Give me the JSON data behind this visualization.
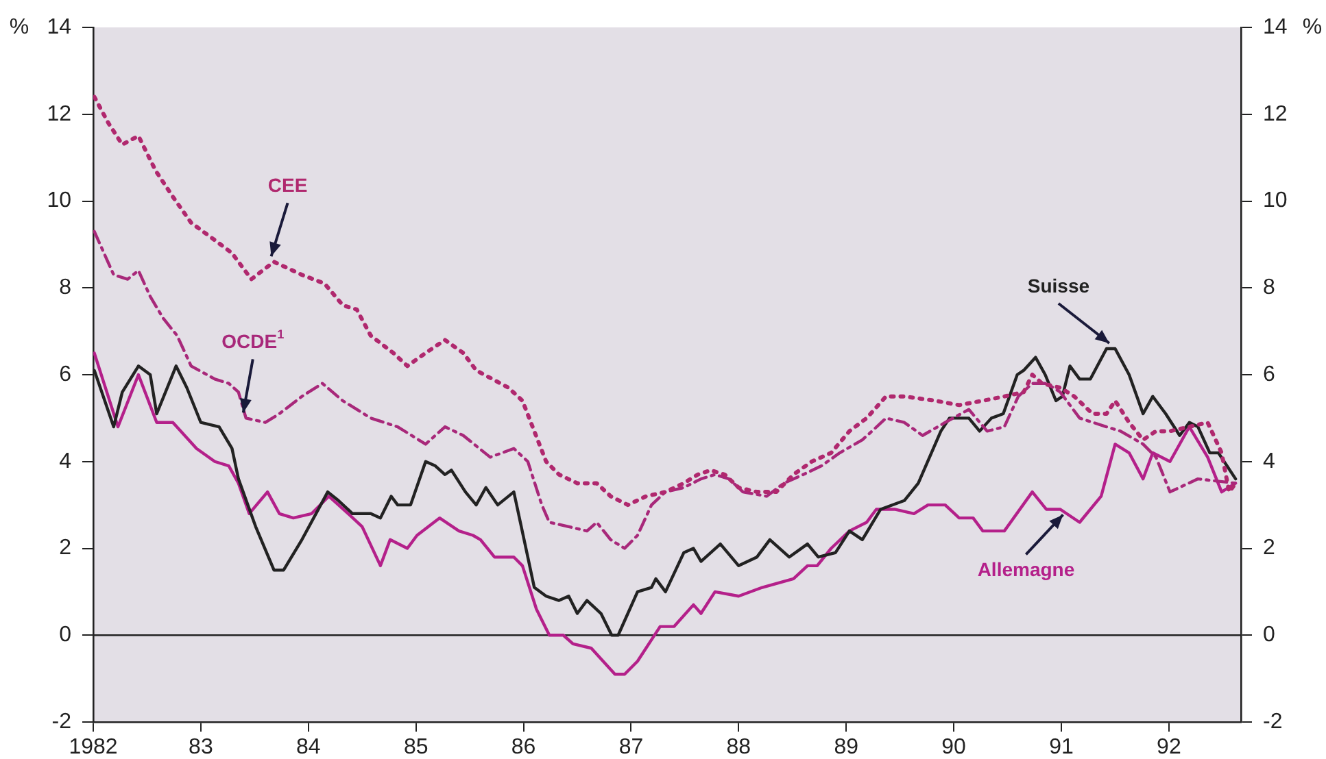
{
  "chart_data": {
    "type": "line",
    "ylabel": "%",
    "y2label": "%",
    "legend": false,
    "grid": false,
    "marker": "none",
    "xlim": [
      1982,
      1992.67
    ],
    "xticks": [
      1982,
      {
        "value": 1983,
        "label": "83"
      },
      {
        "value": 1984,
        "label": "84"
      },
      {
        "value": 1985,
        "label": "85"
      },
      {
        "value": 1986,
        "label": "86"
      },
      {
        "value": 1987,
        "label": "87"
      },
      {
        "value": 1988,
        "label": "88"
      },
      {
        "value": 1989,
        "label": "89"
      },
      {
        "value": 1990,
        "label": "90"
      },
      {
        "value": 1991,
        "label": "91"
      },
      {
        "value": 1992,
        "label": "92"
      }
    ],
    "ylim": [
      -2,
      14
    ],
    "yticks": [
      -2,
      0,
      2,
      4,
      6,
      8,
      10,
      12,
      14
    ],
    "y2lim": [
      -2,
      14
    ],
    "y2ticks": [
      -2,
      0,
      2,
      4,
      6,
      8,
      10,
      12,
      14
    ],
    "ref_lines": [
      {
        "axis": "y",
        "value": 0,
        "color": "#222222",
        "line_style": "solid"
      }
    ],
    "series": [
      {
        "name": "CEE",
        "color": "#b0286e",
        "line_style": "dotted",
        "x": [
          1982.01,
          1982.14,
          1982.27,
          1982.42,
          1982.58,
          1982.74,
          1982.91,
          1983.13,
          1983.29,
          1983.47,
          1983.68,
          1983.94,
          1984.15,
          1984.32,
          1984.45,
          1984.58,
          1984.79,
          1984.92,
          1985.09,
          1985.27,
          1985.44,
          1985.56,
          1985.86,
          1985.99,
          1986.1,
          1986.21,
          1986.33,
          1986.5,
          1986.68,
          1986.81,
          1986.97,
          1987.14,
          1987.32,
          1987.49,
          1987.62,
          1987.74,
          1987.87,
          1988.0,
          1988.17,
          1988.35,
          1988.51,
          1988.68,
          1988.86,
          1989.03,
          1989.19,
          1989.37,
          1989.54,
          1989.83,
          1990.05,
          1990.27,
          1990.47,
          1990.65,
          1990.73,
          1990.82,
          1990.99,
          1991.12,
          1991.29,
          1991.42,
          1991.5,
          1991.63,
          1991.76,
          1991.88,
          1992.01,
          1992.19,
          1992.36,
          1992.49,
          1992.56,
          1992.62
        ],
        "values": [
          12.4,
          11.8,
          11.3,
          11.5,
          10.7,
          10.1,
          9.5,
          9.1,
          8.8,
          8.2,
          8.6,
          8.3,
          8.1,
          7.6,
          7.5,
          6.9,
          6.5,
          6.2,
          6.5,
          6.8,
          6.5,
          6.1,
          5.7,
          5.4,
          4.7,
          4.0,
          3.7,
          3.5,
          3.5,
          3.2,
          3.0,
          3.2,
          3.3,
          3.5,
          3.7,
          3.8,
          3.7,
          3.4,
          3.3,
          3.3,
          3.7,
          4.0,
          4.2,
          4.7,
          5.0,
          5.5,
          5.5,
          5.4,
          5.3,
          5.4,
          5.5,
          5.6,
          6.0,
          5.8,
          5.7,
          5.5,
          5.1,
          5.1,
          5.4,
          4.9,
          4.5,
          4.7,
          4.7,
          4.8,
          4.9,
          4.2,
          3.3,
          3.5
        ]
      },
      {
        "name": "OCDE$^{1}$",
        "color": "#a8287a",
        "line_style": "dashed",
        "x": [
          1982.01,
          1982.19,
          1982.32,
          1982.42,
          1982.53,
          1982.65,
          1982.78,
          1982.91,
          1983.13,
          1983.26,
          1983.35,
          1983.42,
          1983.6,
          1983.73,
          1983.94,
          1984.13,
          1984.32,
          1984.58,
          1984.83,
          1985.09,
          1985.27,
          1985.44,
          1985.69,
          1985.91,
          1986.04,
          1986.17,
          1986.24,
          1986.42,
          1986.59,
          1986.68,
          1986.81,
          1986.94,
          1987.06,
          1987.19,
          1987.32,
          1987.49,
          1987.65,
          1987.78,
          1987.91,
          1988.04,
          1988.26,
          1988.42,
          1988.6,
          1988.77,
          1988.94,
          1989.15,
          1989.24,
          1989.37,
          1989.54,
          1989.71,
          1989.92,
          1990.14,
          1990.31,
          1990.47,
          1990.6,
          1990.73,
          1990.86,
          1990.99,
          1991.17,
          1991.42,
          1991.55,
          1991.76,
          1991.88,
          1992.01,
          1992.27,
          1992.62
        ],
        "values": [
          9.3,
          8.3,
          8.2,
          8.4,
          7.8,
          7.3,
          6.9,
          6.2,
          5.9,
          5.8,
          5.6,
          5.0,
          4.9,
          5.1,
          5.5,
          5.8,
          5.4,
          5.0,
          4.8,
          4.4,
          4.8,
          4.6,
          4.1,
          4.3,
          4.0,
          3.0,
          2.6,
          2.5,
          2.4,
          2.6,
          2.2,
          2.0,
          2.3,
          3.0,
          3.3,
          3.4,
          3.6,
          3.7,
          3.6,
          3.3,
          3.2,
          3.5,
          3.7,
          3.9,
          4.2,
          4.5,
          4.7,
          5.0,
          4.9,
          4.6,
          4.9,
          5.2,
          4.7,
          4.8,
          5.5,
          5.8,
          5.8,
          5.6,
          5.0,
          4.8,
          4.7,
          4.4,
          4.1,
          3.3,
          3.6,
          3.5
        ]
      },
      {
        "name": "Suisse",
        "color": "#222222",
        "line_style": "solid",
        "x": [
          1982.01,
          1982.19,
          1982.27,
          1982.42,
          1982.53,
          1982.59,
          1982.77,
          1982.87,
          1983.0,
          1983.17,
          1983.29,
          1983.35,
          1983.51,
          1983.68,
          1983.77,
          1983.94,
          1984.18,
          1984.28,
          1984.41,
          1984.58,
          1984.67,
          1984.77,
          1984.83,
          1984.95,
          1985.09,
          1985.18,
          1985.27,
          1985.33,
          1985.46,
          1985.56,
          1985.65,
          1985.76,
          1985.91,
          1986.04,
          1986.1,
          1986.21,
          1986.33,
          1986.42,
          1986.5,
          1986.59,
          1986.72,
          1986.82,
          1986.88,
          1987.06,
          1987.19,
          1987.23,
          1987.32,
          1987.49,
          1987.58,
          1987.65,
          1987.83,
          1988.0,
          1988.17,
          1988.29,
          1988.47,
          1988.64,
          1988.74,
          1988.9,
          1989.03,
          1989.15,
          1989.32,
          1989.54,
          1989.67,
          1989.88,
          1989.96,
          1990.14,
          1990.24,
          1990.35,
          1990.46,
          1990.59,
          1990.65,
          1990.76,
          1990.85,
          1990.95,
          1991.01,
          1991.08,
          1991.17,
          1991.27,
          1991.42,
          1991.5,
          1991.63,
          1991.76,
          1991.85,
          1991.97,
          1992.1,
          1992.19,
          1992.27,
          1992.38,
          1992.46,
          1992.62
        ],
        "values": [
          6.1,
          4.8,
          5.6,
          6.2,
          6.0,
          5.1,
          6.2,
          5.7,
          4.9,
          4.8,
          4.3,
          3.6,
          2.5,
          1.5,
          1.5,
          2.2,
          3.3,
          3.1,
          2.8,
          2.8,
          2.7,
          3.2,
          3.0,
          3.0,
          4.0,
          3.9,
          3.7,
          3.8,
          3.3,
          3.0,
          3.4,
          3.0,
          3.3,
          1.8,
          1.1,
          0.9,
          0.8,
          0.9,
          0.5,
          0.8,
          0.5,
          0.0,
          0.0,
          1.0,
          1.1,
          1.3,
          1.0,
          1.9,
          2.0,
          1.7,
          2.1,
          1.6,
          1.8,
          2.2,
          1.8,
          2.1,
          1.8,
          1.9,
          2.4,
          2.2,
          2.9,
          3.1,
          3.5,
          4.7,
          5.0,
          5.0,
          4.7,
          5.0,
          5.1,
          6.0,
          6.1,
          6.4,
          6.0,
          5.4,
          5.5,
          6.2,
          5.9,
          5.9,
          6.6,
          6.6,
          6.0,
          5.1,
          5.5,
          5.1,
          4.6,
          4.9,
          4.8,
          4.2,
          4.2,
          3.6
        ]
      },
      {
        "name": "Allemagne",
        "color": "#b4208a",
        "line_style": "solid",
        "x": [
          1982.01,
          1982.23,
          1982.42,
          1982.59,
          1982.74,
          1982.96,
          1983.13,
          1983.26,
          1983.35,
          1983.45,
          1983.62,
          1983.73,
          1983.86,
          1984.03,
          1984.19,
          1984.37,
          1984.5,
          1984.67,
          1984.76,
          1984.92,
          1985.01,
          1985.22,
          1985.4,
          1985.53,
          1985.6,
          1985.73,
          1985.91,
          1985.99,
          1986.12,
          1986.24,
          1986.37,
          1986.46,
          1986.63,
          1986.85,
          1986.94,
          1987.06,
          1987.27,
          1987.4,
          1987.58,
          1987.65,
          1987.78,
          1988.0,
          1988.22,
          1988.51,
          1988.64,
          1988.73,
          1988.86,
          1989.03,
          1989.19,
          1989.28,
          1989.45,
          1989.63,
          1989.76,
          1989.92,
          1990.05,
          1990.18,
          1990.27,
          1990.47,
          1990.73,
          1990.86,
          1990.99,
          1991.17,
          1991.37,
          1991.5,
          1991.63,
          1991.76,
          1991.85,
          1992.01,
          1992.19,
          1992.36,
          1992.49,
          1992.62
        ],
        "values": [
          6.5,
          4.8,
          6.0,
          4.9,
          4.9,
          4.3,
          4.0,
          3.9,
          3.5,
          2.8,
          3.3,
          2.8,
          2.7,
          2.8,
          3.2,
          2.8,
          2.5,
          1.6,
          2.2,
          2.0,
          2.3,
          2.7,
          2.4,
          2.3,
          2.2,
          1.8,
          1.8,
          1.6,
          0.6,
          0.0,
          0.0,
          -0.2,
          -0.3,
          -0.9,
          -0.9,
          -0.6,
          0.2,
          0.2,
          0.7,
          0.5,
          1.0,
          0.9,
          1.1,
          1.3,
          1.6,
          1.6,
          2.0,
          2.4,
          2.6,
          2.9,
          2.9,
          2.8,
          3.0,
          3.0,
          2.7,
          2.7,
          2.4,
          2.4,
          3.3,
          2.9,
          2.9,
          2.6,
          3.2,
          4.4,
          4.2,
          3.6,
          4.2,
          4.0,
          4.8,
          4.1,
          3.3,
          3.5
        ]
      }
    ]
  }
}
